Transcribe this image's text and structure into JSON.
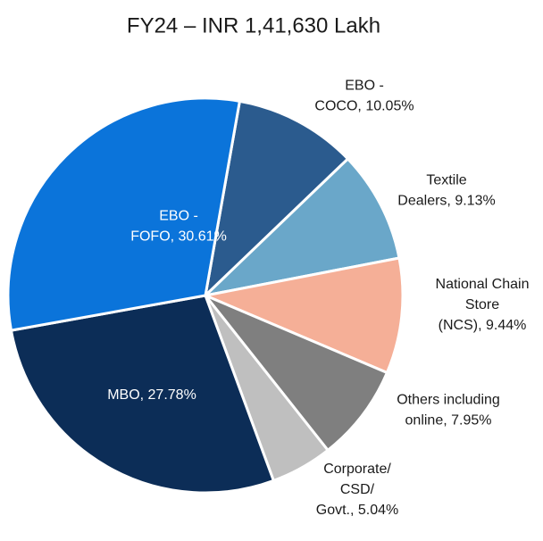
{
  "chart_data": {
    "type": "pie",
    "title": "FY24  – INR 1,41,630 Lakh",
    "values": [
      10.05,
      9.13,
      9.44,
      7.95,
      5.04,
      27.78,
      30.61
    ],
    "value_labels": [
      [
        "EBO -",
        "COCO, 10.05%"
      ],
      [
        "Textile",
        "Dealers, 9.13%"
      ],
      [
        "National Chain",
        "Store",
        "(NCS), 9.44%"
      ],
      [
        "Others including",
        "online, 7.95%"
      ],
      [
        "Corporate/",
        "CSD/",
        "Govt., 5.04%"
      ],
      [
        "MBO, 27.78%"
      ],
      [
        "EBO -",
        "FOFO, 30.61%"
      ]
    ],
    "colors": [
      "#2b5b8e",
      "#6aa7c9",
      "#f5af97",
      "#7f7f7f",
      "#bfbfbf",
      "#0c2d57",
      "#0b74da"
    ]
  }
}
